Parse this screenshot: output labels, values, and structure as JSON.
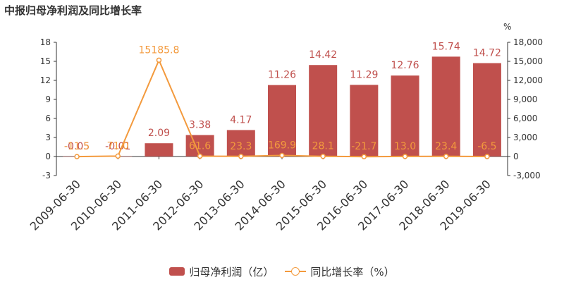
{
  "title": "中报归母净利润及同比增长率",
  "chart_data": {
    "type": "bar+line",
    "categories": [
      "2009-06-30",
      "2010-06-30",
      "2011-06-30",
      "2012-06-30",
      "2013-06-30",
      "2014-06-30",
      "2015-06-30",
      "2016-06-30",
      "2017-06-30",
      "2018-06-30",
      "2019-06-30"
    ],
    "series": [
      {
        "name": "归母净利润（亿）",
        "type": "bar",
        "axis": "left",
        "color": "#c0504d",
        "values": [
          -0.05,
          -0.01,
          2.09,
          3.38,
          4.17,
          11.26,
          14.42,
          11.29,
          12.76,
          15.74,
          14.72
        ],
        "labels": [
          "-0.05",
          "-0.01",
          "2.09",
          "3.38",
          "4.17",
          "11.26",
          "14.42",
          "11.29",
          "12.76",
          "15.74",
          "14.72"
        ]
      },
      {
        "name": "同比增长率（%）",
        "type": "line",
        "axis": "right",
        "color": "#f39a3d",
        "values": [
          -11.5,
          71.0,
          15185.8,
          61.6,
          23.3,
          169.9,
          28.1,
          -21.7,
          13.0,
          23.4,
          -6.5
        ],
        "labels": [
          "-11.5",
          "71.0",
          "15185.8",
          "61.6",
          "23.3",
          "169.9",
          "28.1",
          "-21.7",
          "13.0",
          "23.4",
          "-6.5"
        ]
      }
    ],
    "left_axis": {
      "ylim": [
        -3,
        18
      ],
      "ticks": [
        "-3",
        "0",
        "3",
        "6",
        "9",
        "12",
        "15",
        "18"
      ]
    },
    "right_axis": {
      "unit": "%",
      "ylim": [
        -3000,
        18000
      ],
      "ticks": [
        "-3,000",
        "0",
        "3,000",
        "6,000",
        "9,000",
        "12,000",
        "15,000",
        "18,000"
      ]
    },
    "grid": false,
    "legend_position": "bottom"
  }
}
